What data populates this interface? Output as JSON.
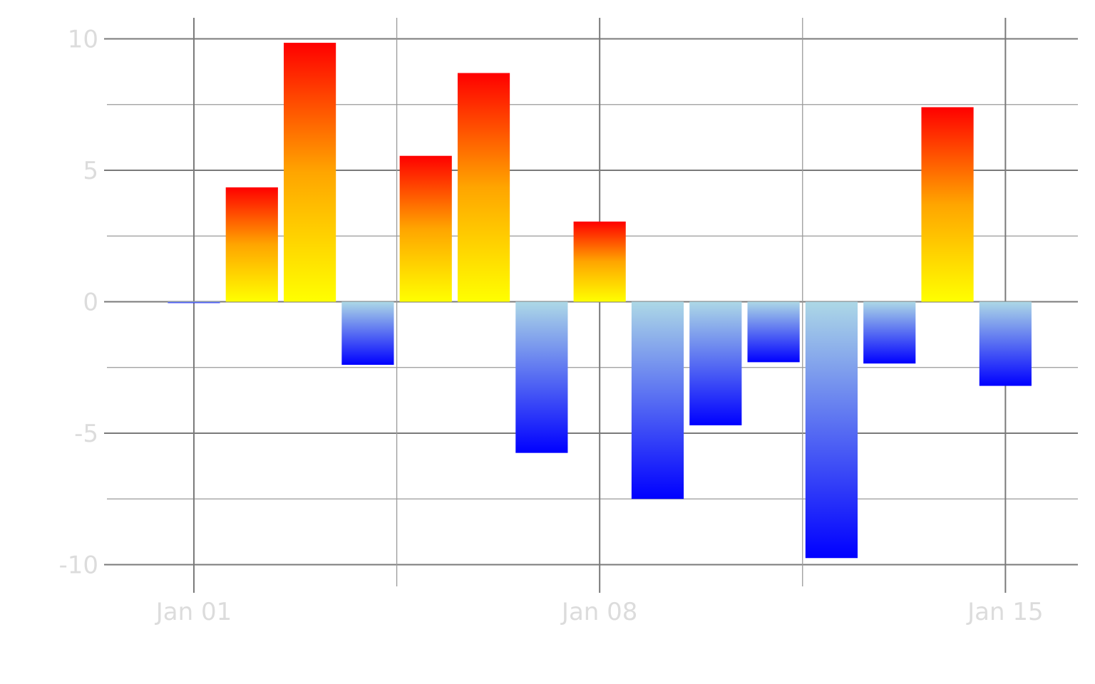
{
  "chart_data": {
    "type": "bar",
    "title": "",
    "xlabel": "",
    "ylabel": "",
    "x": [
      "2024-01-01",
      "2024-01-02",
      "2024-01-03",
      "2024-01-04",
      "2024-01-05",
      "2024-01-06",
      "2024-01-07",
      "2024-01-08",
      "2024-01-09",
      "2024-01-10",
      "2024-01-11",
      "2024-01-12",
      "2024-01-13",
      "2024-01-14",
      "2024-01-15"
    ],
    "values": [
      -0.05,
      4.35,
      9.85,
      -2.4,
      5.55,
      8.7,
      -5.75,
      3.05,
      -7.5,
      -4.7,
      -2.3,
      -9.75,
      -2.35,
      7.4,
      -3.2
    ],
    "ylim": [
      -10.8,
      10.8
    ],
    "xlim": [
      "2023-12-30 12:00",
      "2024-01-16 06:00"
    ],
    "y_ticks": [
      10,
      5,
      0,
      -5,
      -10
    ],
    "y_tick_labels": [
      "10",
      "5",
      "0",
      "-5",
      "-10"
    ],
    "x_major_ticks": [
      "2024-01-01",
      "2024-01-08",
      "2024-01-15"
    ],
    "x_tick_labels": [
      "Jan 01",
      "Jan 08",
      "Jan 15"
    ],
    "x_minor_ticks": [
      "2024-01-04 12:00",
      "2024-01-11 12:00"
    ],
    "y_minor_ticks": [
      7.5,
      2.5,
      -2.5,
      -7.5
    ],
    "grid": true,
    "legend": "none",
    "colors": {
      "positive_top": "#ff0000",
      "positive_mid": "#ffa500",
      "positive_bottom": "#ffff00",
      "negative_top": "#add8e6",
      "negative_bottom": "#0000ff",
      "grid_major": "#7a7a7a",
      "grid_minor": "#9a9a9a",
      "tick_label": "#dcdcdc"
    }
  }
}
